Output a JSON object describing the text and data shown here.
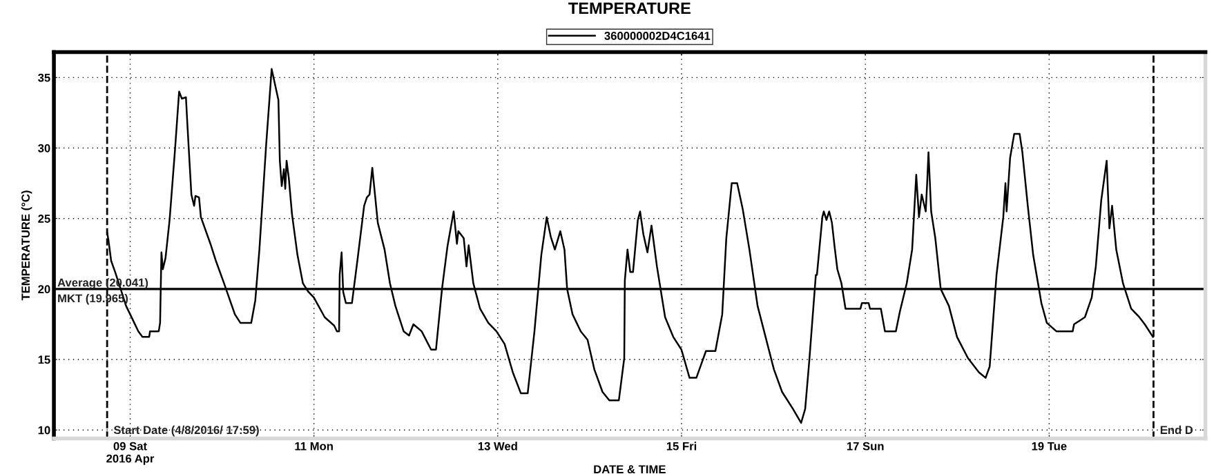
{
  "chart_data": {
    "type": "line",
    "title": "TEMPERATURE",
    "xlabel": "DATE & TIME",
    "ylabel": "TEMPERATURE (°C)",
    "xlim": [
      "2016-04-08T04:05",
      "2016-04-20T16:48"
    ],
    "ylim": [
      9.4,
      36.8
    ],
    "xticks": [
      {
        "value": "2016-04-09",
        "label": "09 Sat\n2016 Apr"
      },
      {
        "value": "2016-04-11",
        "label": "11 Mon"
      },
      {
        "value": "2016-04-13",
        "label": "13 Wed"
      },
      {
        "value": "2016-04-15",
        "label": "15 Fri"
      },
      {
        "value": "2016-04-17",
        "label": "17 Sun"
      },
      {
        "value": "2016-04-19",
        "label": "19 Tue"
      }
    ],
    "yticks": [
      10,
      15,
      20,
      25,
      30,
      35
    ],
    "grid": true,
    "legend": "top",
    "line_style": "solid",
    "marker": "none",
    "annotations": [
      "MKT (19.965)"
    ],
    "ref_lines": [
      {
        "axis": "y",
        "value": 20,
        "label": "Average (20.041)",
        "color": "#000000",
        "line_style": "solid"
      },
      {
        "axis": "x",
        "value": "2016-04-08T17:59",
        "label": "Start Date (4/8/2016/ 17:59)",
        "color": "#000000",
        "line_style": "dashed"
      },
      {
        "axis": "x",
        "value": "2016-04-20T03:15",
        "label": "End D",
        "color": "#000000",
        "line_style": "dashed"
      }
    ],
    "series": [
      {
        "name": "360000002D4C1641",
        "color": "#000000",
        "x": [
          "2016-04-08T17:59",
          "2016-04-08T18:19",
          "2016-04-08T19:02",
          "2016-04-08T20:05",
          "2016-04-08T21:31",
          "2016-04-08T22:56",
          "2016-04-09T01:04",
          "2016-04-09T02:08",
          "2016-04-09T03:12",
          "2016-04-09T04:58",
          "2016-04-09T05:11",
          "2016-04-09T07:28",
          "2016-04-09T07:49",
          "2016-04-09T08:10",
          "2016-04-09T08:32",
          "2016-04-09T09:14",
          "2016-04-09T10:18",
          "2016-04-09T11:43",
          "2016-04-09T12:47",
          "2016-04-09T13:30",
          "2016-04-09T14:34",
          "2016-04-09T14:55",
          "2016-04-09T15:59",
          "2016-04-09T16:42",
          "2016-04-09T17:03",
          "2016-04-09T17:59",
          "2016-04-09T18:28",
          "2016-04-09T20:58",
          "2016-04-09T22:23",
          "2016-04-10T00:31",
          "2016-04-10T03:21",
          "2016-04-10T04:47",
          "2016-04-10T07:37",
          "2016-04-10T08:41",
          "2016-04-10T09:45",
          "2016-04-10T11:32",
          "2016-04-10T12:57",
          "2016-04-10T14:43",
          "2016-04-10T15:05",
          "2016-04-10T15:35",
          "2016-04-10T16:09",
          "2016-04-10T16:30",
          "2016-04-10T16:51",
          "2016-04-10T17:25",
          "2016-04-10T18:16",
          "2016-04-10T19:42",
          "2016-04-10T21:07",
          "2016-04-10T22:32",
          "2016-04-10T23:58",
          "2016-04-11T02:48",
          "2016-04-11T05:17",
          "2016-04-11T06:00",
          "2016-04-11T06:34",
          "2016-04-11T06:43",
          "2016-04-11T07:13",
          "2016-04-11T07:38",
          "2016-04-11T08:20",
          "2016-04-11T09:55",
          "2016-04-11T11:20",
          "2016-04-11T13:06",
          "2016-04-11T13:49",
          "2016-04-11T14:31",
          "2016-04-11T15:14",
          "2016-04-11T16:40",
          "2016-04-11T18:26",
          "2016-04-11T19:51",
          "2016-04-11T21:16",
          "2016-04-11T23:25",
          "2016-04-12T00:50",
          "2016-04-12T01:58",
          "2016-04-12T04:07",
          "2016-04-12T06:35",
          "2016-04-12T07:52",
          "2016-04-12T09:26",
          "2016-04-12T10:51",
          "2016-04-12T12:29",
          "2016-04-12T13:20",
          "2016-04-12T13:42",
          "2016-04-12T15:07",
          "2016-04-12T15:50",
          "2016-04-12T16:24",
          "2016-04-12T17:37",
          "2016-04-12T19:23",
          "2016-04-12T21:31",
          "2016-04-12T23:39",
          "2016-04-13T01:47",
          "2016-04-13T03:55",
          "2016-04-13T06:02",
          "2016-04-13T07:49",
          "2016-04-13T09:35",
          "2016-04-13T11:22",
          "2016-04-13T12:47",
          "2016-04-13T13:51",
          "2016-04-13T14:55",
          "2016-04-13T16:20",
          "2016-04-13T17:25",
          "2016-04-13T18:07",
          "2016-04-13T19:32",
          "2016-04-13T21:40",
          "2016-04-13T23:27",
          "2016-04-14T01:13",
          "2016-04-14T03:21",
          "2016-04-14T05:08",
          "2016-04-14T07:37",
          "2016-04-14T09:02",
          "2016-04-14T09:11",
          "2016-04-14T09:53",
          "2016-04-14T10:36",
          "2016-04-14T11:19",
          "2016-04-14T12:35",
          "2016-04-14T13:10",
          "2016-04-14T14:01",
          "2016-04-14T15:05",
          "2016-04-14T16:09",
          "2016-04-14T17:34",
          "2016-04-14T19:42",
          "2016-04-14T21:50",
          "2016-04-14T23:58",
          "2016-04-15T02:05",
          "2016-04-15T03:52",
          "2016-04-15T06:22",
          "2016-04-15T08:50",
          "2016-04-15T10:37",
          "2016-04-15T11:41",
          "2016-04-15T13:06",
          "2016-04-15T14:31",
          "2016-04-15T15:57",
          "2016-04-15T17:43",
          "2016-04-15T19:51",
          "2016-04-16T00:07",
          "2016-04-16T02:15",
          "2016-04-16T05:05",
          "2016-04-16T07:13",
          "2016-04-16T08:17",
          "2016-04-16T09:21",
          "2016-04-16T11:04",
          "2016-04-16T11:21",
          "2016-04-16T12:46",
          "2016-04-16T13:08",
          "2016-04-16T13:50",
          "2016-04-16T14:33",
          "2016-04-16T15:16",
          "2016-04-16T15:58",
          "2016-04-16T16:41",
          "2016-04-16T17:45",
          "2016-04-16T18:49",
          "2016-04-16T22:43",
          "2016-04-16T23:05",
          "2016-04-17T00:51",
          "2016-04-17T01:13",
          "2016-04-17T04:03",
          "2016-04-17T05:07",
          "2016-04-17T07:58",
          "2016-04-17T09:01",
          "2016-04-17T10:48",
          "2016-04-17T12:13",
          "2016-04-17T13:17",
          "2016-04-17T14:00",
          "2016-04-17T14:43",
          "2016-04-17T15:46",
          "2016-04-17T16:08",
          "2016-04-17T16:29",
          "2016-04-17T17:11",
          "2016-04-17T18:16",
          "2016-04-17T19:41",
          "2016-04-17T21:49",
          "2016-04-17T23:56",
          "2016-04-18T02:47",
          "2016-04-18T05:38",
          "2016-04-18T07:24",
          "2016-04-18T08:28",
          "2016-04-18T10:15",
          "2016-04-18T12:01",
          "2016-04-18T12:35",
          "2016-04-18T12:53",
          "2016-04-18T13:48",
          "2016-04-18T14:52",
          "2016-04-18T16:17",
          "2016-04-18T17:00",
          "2016-04-18T18:25",
          "2016-04-18T19:50",
          "2016-04-18T21:58",
          "2016-04-18T23:23",
          "2016-04-19T01:53",
          "2016-04-19T06:08",
          "2016-04-19T06:30",
          "2016-04-19T09:20",
          "2016-04-19T11:07",
          "2016-04-19T12:11",
          "2016-04-19T13:36",
          "2016-04-19T15:01",
          "2016-04-19T15:44",
          "2016-04-19T16:26",
          "2016-04-19T17:31",
          "2016-04-19T19:17",
          "2016-04-19T21:25",
          "2016-04-19T23:33",
          "2016-04-20T00:58",
          "2016-04-20T03:06"
        ],
        "values": [
          24.0,
          23.5,
          22.0,
          21.2,
          20.0,
          18.8,
          17.6,
          17.0,
          16.6,
          16.6,
          17.0,
          17.0,
          17.6,
          22.6,
          21.4,
          22.2,
          24.9,
          29.9,
          34.0,
          33.5,
          33.6,
          31.8,
          26.7,
          25.9,
          26.6,
          26.5,
          25.1,
          23.2,
          22.0,
          20.4,
          18.2,
          17.6,
          17.6,
          19.2,
          22.8,
          30.3,
          35.6,
          33.4,
          29.1,
          27.3,
          28.5,
          27.1,
          29.1,
          27.9,
          25.3,
          22.4,
          20.4,
          19.8,
          19.4,
          18.0,
          17.4,
          17.0,
          17.0,
          21.0,
          22.6,
          19.8,
          19.0,
          19.0,
          22.0,
          25.9,
          26.5,
          26.7,
          28.6,
          24.7,
          22.8,
          20.4,
          18.8,
          17.0,
          16.7,
          17.5,
          17.0,
          15.7,
          15.7,
          20.0,
          23.0,
          25.5,
          23.2,
          24.1,
          23.6,
          21.6,
          23.1,
          20.4,
          18.6,
          17.6,
          17.0,
          16.1,
          14.1,
          12.6,
          12.6,
          17.0,
          22.4,
          25.1,
          23.7,
          22.8,
          24.1,
          22.8,
          20.0,
          18.2,
          17.0,
          16.4,
          14.3,
          12.7,
          12.1,
          12.1,
          15.1,
          20.6,
          22.8,
          21.2,
          21.2,
          24.9,
          25.5,
          23.9,
          22.6,
          24.5,
          21.6,
          18.0,
          16.6,
          15.7,
          13.7,
          13.7,
          15.6,
          15.6,
          18.2,
          23.6,
          27.5,
          27.5,
          25.7,
          22.8,
          18.8,
          14.3,
          12.7,
          11.5,
          10.5,
          11.5,
          14.9,
          21.0,
          21.0,
          25.1,
          25.5,
          24.9,
          25.5,
          24.7,
          23.0,
          21.4,
          20.4,
          18.6,
          18.6,
          19.0,
          19.0,
          18.6,
          18.6,
          17.0,
          17.0,
          18.4,
          20.4,
          22.8,
          28.1,
          25.1,
          26.7,
          25.5,
          27.5,
          29.7,
          25.5,
          23.6,
          20.0,
          18.8,
          16.6,
          15.1,
          14.1,
          13.7,
          14.5,
          21.0,
          25.1,
          27.5,
          25.5,
          29.3,
          31.0,
          31.0,
          29.7,
          25.9,
          22.4,
          19.0,
          17.6,
          17.0,
          17.0,
          17.5,
          18.0,
          19.4,
          21.6,
          26.3,
          29.1,
          24.3,
          25.9,
          22.8,
          20.4,
          18.6,
          18.0,
          17.5,
          16.6
        ]
      }
    ]
  }
}
